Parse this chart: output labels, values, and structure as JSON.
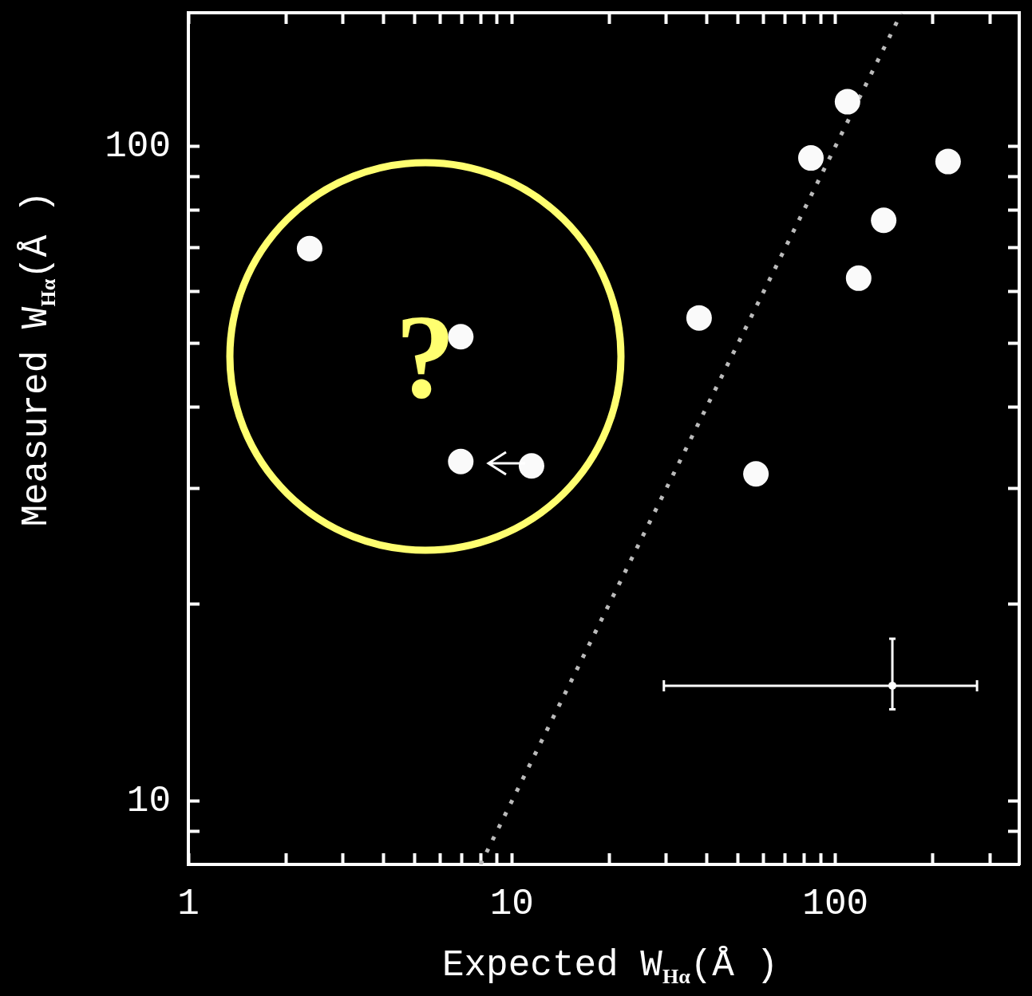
{
  "chart_data": {
    "type": "scatter",
    "xlabel": "Expected W$_{Hα}$(Å )",
    "ylabel": "Measured W$_{Hα}$(Å )",
    "log": "xy",
    "xlim": [
      1,
      370
    ],
    "ylim": [
      8,
      160
    ],
    "xticks": [
      1,
      {
        "value": 2,
        "label": null
      },
      {
        "value": 3,
        "label": null
      },
      {
        "value": 4,
        "label": null
      },
      {
        "value": 5,
        "label": null
      },
      {
        "value": 6,
        "label": null
      },
      {
        "value": 7,
        "label": null
      },
      {
        "value": 8,
        "label": null
      },
      {
        "value": 9,
        "label": null
      },
      10,
      {
        "value": 20,
        "label": null
      },
      {
        "value": 30,
        "label": null
      },
      {
        "value": 40,
        "label": null
      },
      {
        "value": 50,
        "label": null
      },
      {
        "value": 60,
        "label": null
      },
      {
        "value": 70,
        "label": null
      },
      {
        "value": 80,
        "label": null
      },
      {
        "value": 90,
        "label": null
      },
      100,
      {
        "value": 200,
        "label": null
      },
      {
        "value": 300,
        "label": null
      }
    ],
    "yticks": [
      {
        "value": 9,
        "label": null
      },
      10,
      {
        "value": 20,
        "label": null
      },
      {
        "value": 30,
        "label": null
      },
      {
        "value": 40,
        "label": null
      },
      {
        "value": 50,
        "label": null
      },
      {
        "value": 60,
        "label": null
      },
      {
        "value": 70,
        "label": null
      },
      {
        "value": 80,
        "label": null
      },
      {
        "value": 90,
        "label": null
      },
      100
    ],
    "legend": false,
    "annotations": [
      "?"
    ],
    "series": [
      {
        "type": "scatter",
        "color": "#fafafa",
        "marker": "circle",
        "x": [
          2.37,
          6.95,
          6.95,
          11.5,
          37.9,
          56.8,
          84,
          109,
          118,
          141,
          223
        ],
        "values": [
          69.8,
          51.2,
          33,
          32.5,
          54.7,
          31.6,
          96,
          117,
          62.9,
          77.1,
          94.8
        ]
      },
      {
        "type": "line",
        "color": "#bbbbbb",
        "marker": "none",
        "line_style": "dotted",
        "x": [
          8,
          160
        ],
        "values": [
          8,
          160
        ]
      },
      {
        "type": "scatter",
        "color": "#ffffff",
        "marker": "circle",
        "x": [
          150
        ],
        "values": [
          15
        ],
        "errors": [
          [
            13.8,
            17.7
          ]
        ],
        "xerrors": [
          [
            29.5,
            274
          ]
        ]
      }
    ]
  }
}
